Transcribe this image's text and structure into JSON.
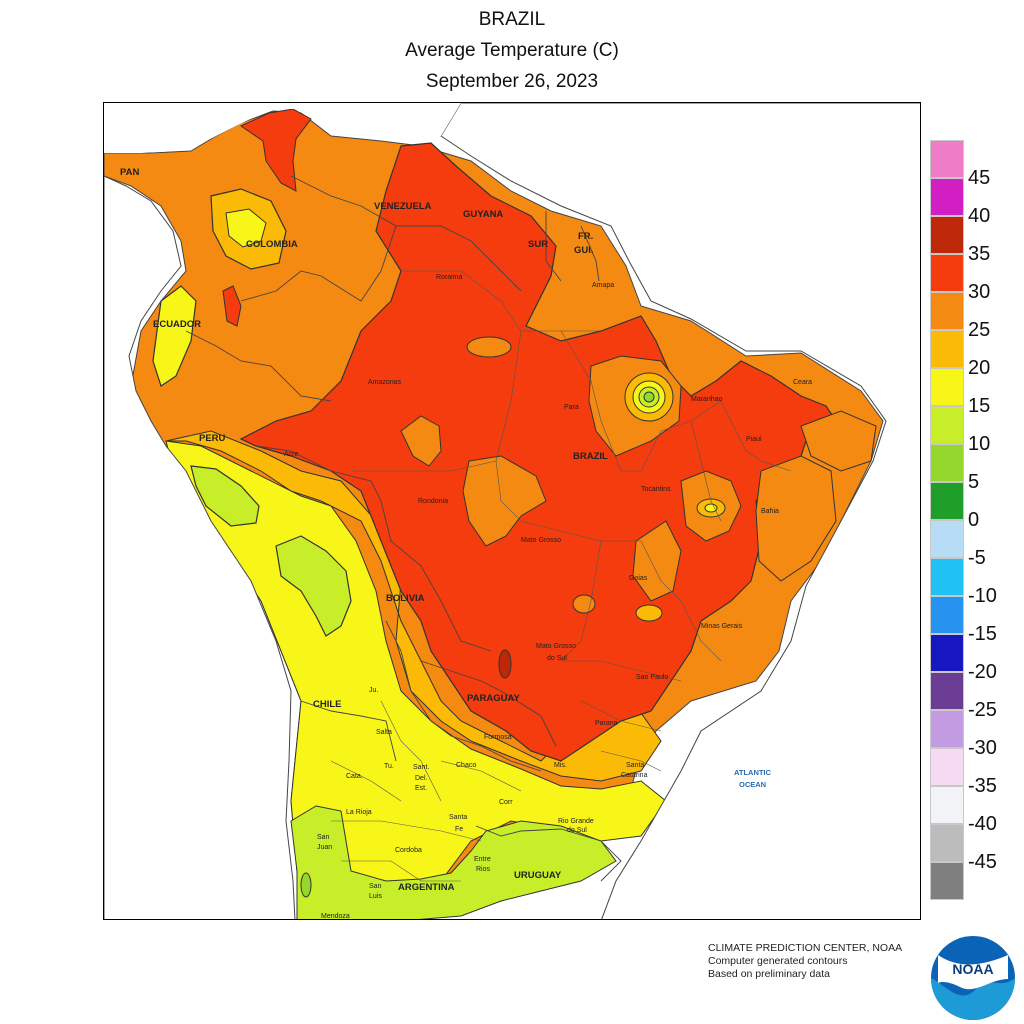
{
  "title": {
    "line1": "BRAZIL",
    "line2": "Average Temperature (C)",
    "line3": "September 26, 2023"
  },
  "legend": {
    "colors": [
      "#ef7cc6",
      "#d21fc4",
      "#be2809",
      "#f53c0e",
      "#f58a12",
      "#fbba05",
      "#f8f618",
      "#c7ee28",
      "#94d82d",
      "#1f9e2a",
      "#b6dcf6",
      "#1fc2f3",
      "#2693f1",
      "#1717c2",
      "#6a3c94",
      "#c39be0",
      "#f6daf2",
      "#f2f3f7",
      "#bcbcbc",
      "#7f7f7f"
    ],
    "ticks": [
      "45",
      "40",
      "35",
      "30",
      "25",
      "20",
      "15",
      "10",
      "5",
      "0",
      "-5",
      "-10",
      "-15",
      "-20",
      "-25",
      "-30",
      "-35",
      "-40",
      "-45"
    ]
  },
  "map": {
    "countries": {
      "pan": "PAN",
      "venezuela": "VENEZUELA",
      "guyana": "GUYANA",
      "sur": "SUR",
      "frgui1": "FR.",
      "frgui2": "GUI.",
      "colombia": "COLOMBIA",
      "ecuador": "ECUADOR",
      "peru": "PERU",
      "brazil": "BRAZIL",
      "bolivia": "BOLIVIA",
      "chile": "CHILE",
      "paraguay": "PARAGUAY",
      "argentina": "ARGENTINA",
      "uruguay": "URUGUAY"
    },
    "states": {
      "roraima": "Roraima",
      "amapa": "Amapa",
      "amazonas": "Amazonas",
      "para": "Para",
      "maranhao": "Maranhao",
      "ceara": "Ceara",
      "piaui": "Piaui",
      "acre": "Acre",
      "rondonia": "Rondonia",
      "tocantins": "Tocantins",
      "bahia": "Bahia",
      "matogrosso": "Mato Grosso",
      "goias": "Goias",
      "minasgerais": "Minas Gerais",
      "mgdosul1": "Mato Grosso",
      "mgdosul2": "do Sul",
      "saopaulo": "Sao Paulo",
      "parana": "Parana",
      "santacatarina1": "Santa",
      "santacatarina2": "Catarina",
      "riogrande1": "Rio Grande",
      "riogrande2": "do Sul",
      "mis": "Mis.",
      "formosa": "Formosa",
      "chaco": "Chaco",
      "jujuy": "Ju.",
      "salta": "Salta",
      "tucuman": "Tu.",
      "catamarca": "Cata.",
      "santdelest1": "Sant.",
      "santdelest2": "Del.",
      "santdelest3": "Est.",
      "larioja": "La Rioja",
      "santafe1": "Santa",
      "santafe2": "Fe",
      "corrientes": "Corr",
      "sanjuan1": "San",
      "sanjuan2": "Juan",
      "cordoba": "Cordoba",
      "entrerios1": "Entre",
      "entrerios2": "Rios",
      "sanluis1": "San",
      "sanluis2": "Luis",
      "mendoza": "Mendoza"
    },
    "ocean1": "ATLANTIC",
    "ocean2": "OCEAN"
  },
  "credits": {
    "line1": "CLIMATE PREDICTION CENTER, NOAA",
    "line2": "Computer generated contours",
    "line3": "Based on preliminary data"
  },
  "logo_text": "NOAA"
}
